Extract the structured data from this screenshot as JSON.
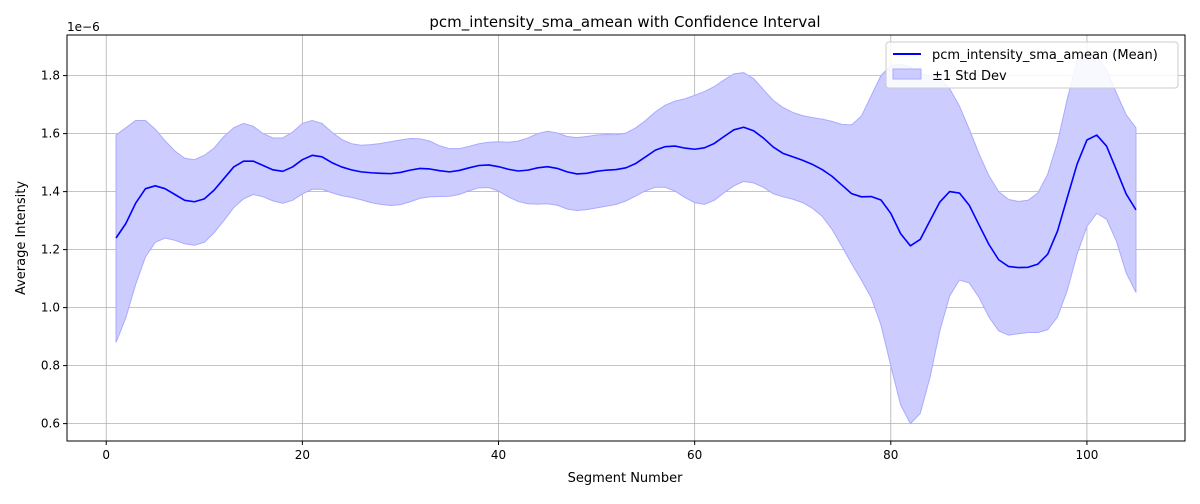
{
  "chart_data": {
    "type": "line",
    "title": "pcm_intensity_sma_amean with Confidence Interval",
    "xlabel": "Segment Number",
    "ylabel": "Average Intensity",
    "y_scale_label": "1e−6",
    "xlim": [
      -4,
      110
    ],
    "ylim": [
      0.54,
      1.94
    ],
    "x_ticks": [
      0,
      20,
      40,
      60,
      80,
      100
    ],
    "x_tick_labels": [
      "0",
      "20",
      "40",
      "60",
      "80",
      "100"
    ],
    "y_ticks": [
      0.6,
      0.8,
      1.0,
      1.2,
      1.4,
      1.6,
      1.8
    ],
    "y_tick_labels": [
      "0.6",
      "0.8",
      "1.0",
      "1.2",
      "1.4",
      "1.6",
      "1.8"
    ],
    "grid": true,
    "legend_position": "upper right",
    "colors": {
      "mean_line": "#0000ff",
      "band_fill": "#ccccff",
      "band_edge": "#aaaaff",
      "grid": "#b0b0b0"
    },
    "x": [
      1,
      2,
      3,
      4,
      5,
      6,
      7,
      8,
      9,
      10,
      11,
      12,
      13,
      14,
      15,
      16,
      17,
      18,
      19,
      20,
      21,
      22,
      23,
      24,
      25,
      26,
      27,
      28,
      29,
      30,
      31,
      32,
      33,
      34,
      35,
      36,
      37,
      38,
      39,
      40,
      41,
      42,
      43,
      44,
      45,
      46,
      47,
      48,
      49,
      50,
      51,
      52,
      53,
      54,
      55,
      56,
      57,
      58,
      59,
      60,
      61,
      62,
      63,
      64,
      65,
      66,
      67,
      68,
      69,
      70,
      71,
      72,
      73,
      74,
      75,
      76,
      77,
      78,
      79,
      80,
      81,
      82,
      83,
      84,
      85,
      86,
      87,
      88,
      89,
      90,
      91,
      92,
      93,
      94,
      95,
      96,
      97,
      98,
      99,
      100,
      101,
      102,
      103,
      104,
      105
    ],
    "series": [
      {
        "name": "pcm_intensity_sma_amean (Mean)",
        "values": [
          1.24,
          1.29,
          1.36,
          1.41,
          1.42,
          1.41,
          1.39,
          1.37,
          1.365,
          1.375,
          1.405,
          1.445,
          1.485,
          1.505,
          1.505,
          1.49,
          1.475,
          1.47,
          1.485,
          1.51,
          1.525,
          1.52,
          1.5,
          1.485,
          1.475,
          1.468,
          1.465,
          1.463,
          1.462,
          1.466,
          1.474,
          1.48,
          1.478,
          1.472,
          1.468,
          1.473,
          1.482,
          1.49,
          1.492,
          1.486,
          1.477,
          1.471,
          1.474,
          1.482,
          1.486,
          1.48,
          1.468,
          1.461,
          1.463,
          1.47,
          1.474,
          1.476,
          1.482,
          1.497,
          1.52,
          1.543,
          1.555,
          1.557,
          1.55,
          1.546,
          1.551,
          1.566,
          1.59,
          1.613,
          1.622,
          1.61,
          1.585,
          1.554,
          1.532,
          1.52,
          1.508,
          1.494,
          1.476,
          1.453,
          1.423,
          1.393,
          1.382,
          1.383,
          1.371,
          1.325,
          1.255,
          1.213,
          1.235,
          1.3,
          1.364,
          1.4,
          1.395,
          1.353,
          1.285,
          1.218,
          1.165,
          1.142,
          1.138,
          1.139,
          1.15,
          1.184,
          1.264,
          1.38,
          1.495,
          1.578,
          1.595,
          1.557,
          1.475,
          1.392,
          1.337
        ]
      },
      {
        "name": "±1 Std Dev",
        "upper": [
          1.595,
          1.62,
          1.645,
          1.645,
          1.615,
          1.575,
          1.54,
          1.515,
          1.51,
          1.525,
          1.55,
          1.59,
          1.62,
          1.635,
          1.625,
          1.6,
          1.585,
          1.585,
          1.605,
          1.635,
          1.645,
          1.635,
          1.605,
          1.58,
          1.565,
          1.56,
          1.562,
          1.566,
          1.572,
          1.578,
          1.583,
          1.582,
          1.574,
          1.558,
          1.548,
          1.548,
          1.556,
          1.565,
          1.57,
          1.572,
          1.57,
          1.574,
          1.585,
          1.6,
          1.608,
          1.602,
          1.59,
          1.586,
          1.59,
          1.595,
          1.597,
          1.596,
          1.602,
          1.62,
          1.645,
          1.675,
          1.698,
          1.712,
          1.72,
          1.732,
          1.745,
          1.762,
          1.785,
          1.806,
          1.81,
          1.79,
          1.752,
          1.715,
          1.69,
          1.673,
          1.662,
          1.655,
          1.65,
          1.642,
          1.632,
          1.63,
          1.66,
          1.73,
          1.8,
          1.835,
          1.84,
          1.83,
          1.81,
          1.795,
          1.79,
          1.755,
          1.695,
          1.615,
          1.53,
          1.455,
          1.4,
          1.373,
          1.366,
          1.37,
          1.395,
          1.46,
          1.57,
          1.72,
          1.85,
          1.885,
          1.865,
          1.82,
          1.74,
          1.665,
          1.62
        ],
        "lower": [
          0.88,
          0.965,
          1.08,
          1.175,
          1.225,
          1.24,
          1.232,
          1.22,
          1.215,
          1.225,
          1.258,
          1.3,
          1.345,
          1.375,
          1.39,
          1.382,
          1.368,
          1.36,
          1.37,
          1.392,
          1.408,
          1.408,
          1.396,
          1.386,
          1.38,
          1.372,
          1.362,
          1.356,
          1.352,
          1.355,
          1.365,
          1.377,
          1.382,
          1.383,
          1.384,
          1.39,
          1.403,
          1.413,
          1.414,
          1.402,
          1.382,
          1.366,
          1.358,
          1.357,
          1.358,
          1.353,
          1.34,
          1.335,
          1.338,
          1.344,
          1.35,
          1.356,
          1.368,
          1.385,
          1.403,
          1.415,
          1.415,
          1.402,
          1.38,
          1.362,
          1.356,
          1.37,
          1.396,
          1.42,
          1.435,
          1.43,
          1.415,
          1.393,
          1.382,
          1.374,
          1.362,
          1.343,
          1.315,
          1.27,
          1.212,
          1.152,
          1.095,
          1.035,
          0.94,
          0.8,
          0.665,
          0.6,
          0.635,
          0.76,
          0.92,
          1.04,
          1.095,
          1.085,
          1.035,
          0.968,
          0.92,
          0.905,
          0.91,
          0.914,
          0.914,
          0.924,
          0.968,
          1.06,
          1.185,
          1.28,
          1.325,
          1.305,
          1.23,
          1.12,
          1.052
        ]
      }
    ]
  }
}
